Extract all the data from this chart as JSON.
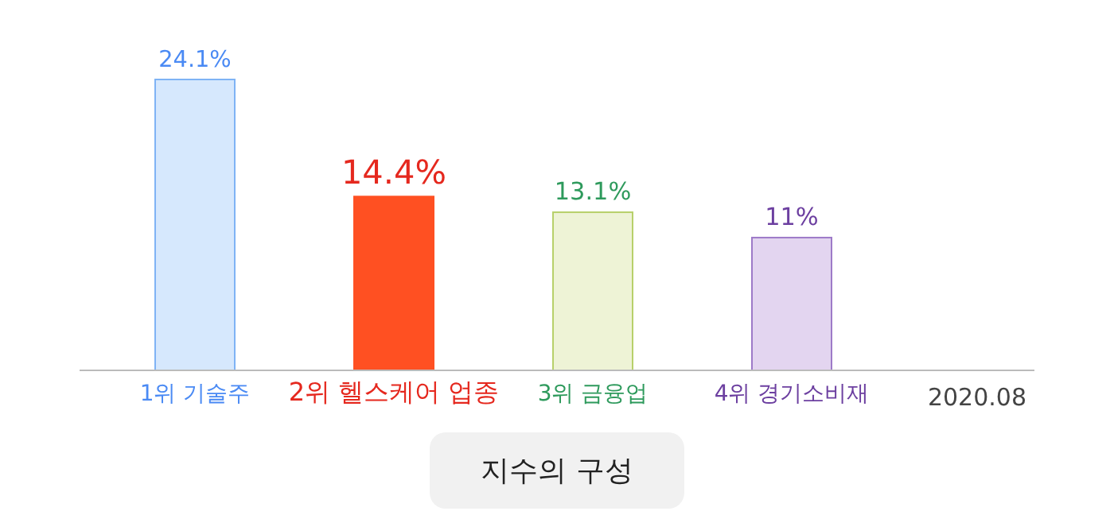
{
  "chart_data": {
    "type": "bar",
    "title": "지수의 구성",
    "categories": [
      "1위 기술주",
      "2위 헬스케어 업종",
      "3위 금융업",
      "4위 경기소비재"
    ],
    "values": [
      24.1,
      14.4,
      13.1,
      11
    ],
    "value_labels": [
      "24.1%",
      "14.4%",
      "13.1%",
      "11%"
    ],
    "colors": [
      "#d6e8fd",
      "#ff5022",
      "#eef3d6",
      "#e3d5f0"
    ],
    "annotations": [
      "2020.08"
    ]
  }
}
